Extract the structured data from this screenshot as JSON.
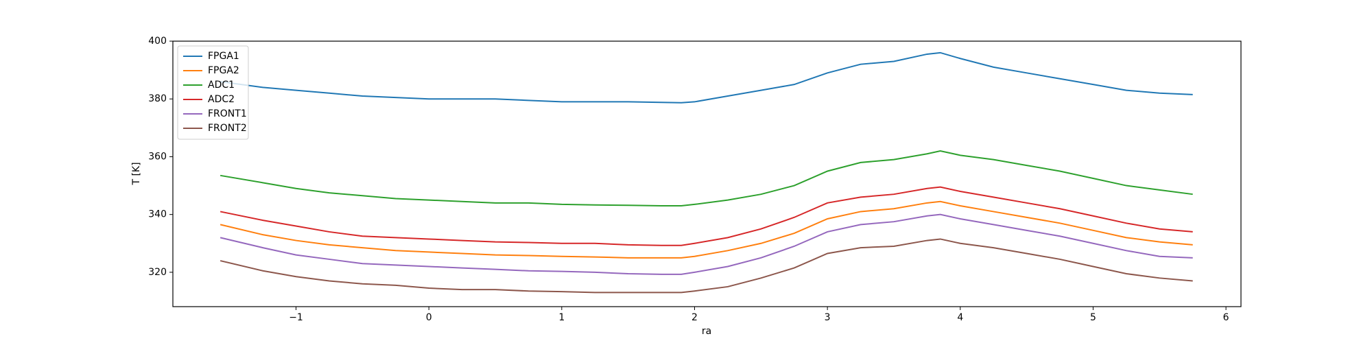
{
  "chart_data": {
    "type": "line",
    "xlabel": "ra",
    "ylabel": "T [K]",
    "x": [
      -1.57,
      -1.25,
      -1,
      -0.75,
      -0.5,
      -0.25,
      0,
      0.25,
      0.5,
      0.75,
      1,
      1.25,
      1.5,
      1.75,
      1.9,
      2,
      2.25,
      2.5,
      2.75,
      3,
      3.25,
      3.5,
      3.75,
      3.85,
      4,
      4.25,
      4.5,
      4.75,
      5,
      5.25,
      5.5,
      5.75
    ],
    "series": [
      {
        "name": "FPGA1",
        "color": "#1f77b4",
        "values": [
          386,
          384,
          383,
          382,
          381,
          380.5,
          380,
          380,
          380,
          379.5,
          379,
          379,
          379,
          378.8,
          378.7,
          379,
          381,
          383,
          385,
          389,
          392,
          393,
          395.5,
          396,
          394,
          391,
          389,
          387,
          385,
          383,
          382,
          381.5
        ]
      },
      {
        "name": "FPGA2",
        "color": "#ff7f0e",
        "values": [
          336.5,
          333,
          331,
          329.5,
          328.5,
          327.5,
          327,
          326.5,
          326,
          325.8,
          325.5,
          325.3,
          325,
          325,
          325,
          325.5,
          327.5,
          330,
          333.5,
          338.5,
          341,
          342,
          344,
          344.5,
          343,
          341,
          339,
          337,
          334.5,
          332,
          330.5,
          329.5
        ]
      },
      {
        "name": "ADC1",
        "color": "#2ca02c",
        "values": [
          353.5,
          351,
          349,
          347.5,
          346.5,
          345.5,
          345,
          344.5,
          344,
          344,
          343.5,
          343.3,
          343.2,
          343,
          343,
          343.5,
          345,
          347,
          350,
          355,
          358,
          359,
          361,
          362,
          360.5,
          359,
          357,
          355,
          352.5,
          350,
          348.5,
          347
        ]
      },
      {
        "name": "ADC2",
        "color": "#d62728",
        "values": [
          341,
          338,
          336,
          334,
          332.5,
          332,
          331.5,
          331,
          330.5,
          330.3,
          330,
          330,
          329.5,
          329.3,
          329.3,
          330,
          332,
          335,
          339,
          344,
          346,
          347,
          349,
          349.5,
          348,
          346,
          344,
          342,
          339.5,
          337,
          335,
          334
        ]
      },
      {
        "name": "FRONT1",
        "color": "#9467bd",
        "values": [
          332,
          328.5,
          326,
          324.5,
          323,
          322.5,
          322,
          321.5,
          321,
          320.5,
          320.3,
          320,
          319.5,
          319.3,
          319.3,
          320,
          322,
          325,
          329,
          334,
          336.5,
          337.5,
          339.5,
          340,
          338.5,
          336.5,
          334.5,
          332.5,
          330,
          327.5,
          325.5,
          325
        ]
      },
      {
        "name": "FRONT2",
        "color": "#8c564b",
        "values": [
          324,
          320.5,
          318.5,
          317,
          316,
          315.5,
          314.5,
          314,
          314,
          313.5,
          313.3,
          313,
          313,
          313,
          313,
          313.5,
          315,
          318,
          321.5,
          326.5,
          328.5,
          329,
          331,
          331.5,
          330,
          328.5,
          326.5,
          324.5,
          322,
          319.5,
          318,
          317
        ]
      }
    ],
    "xlim": [
      -1.927,
      6.113
    ],
    "xticks": [
      {
        "value": -1,
        "label": "−1"
      },
      0,
      1,
      2,
      3,
      4,
      5,
      6
    ],
    "ylim": [
      308.1,
      400
    ],
    "yticks": [
      320,
      340,
      360,
      380,
      400
    ],
    "legend": "upper left"
  }
}
